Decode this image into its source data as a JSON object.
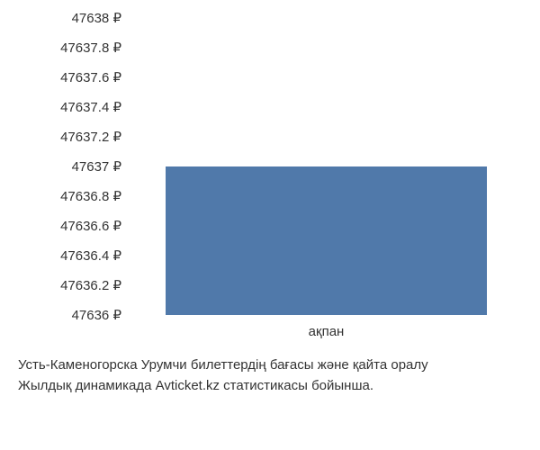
{
  "chart": {
    "type": "bar",
    "ylim": [
      47636,
      47638
    ],
    "ytick_step": 0.2,
    "y_ticks": [
      {
        "value": 47638,
        "label": "47638 ₽"
      },
      {
        "value": 47637.8,
        "label": "47637.8 ₽"
      },
      {
        "value": 47637.6,
        "label": "47637.6 ₽"
      },
      {
        "value": 47637.4,
        "label": "47637.4 ₽"
      },
      {
        "value": 47637.2,
        "label": "47637.2 ₽"
      },
      {
        "value": 47637,
        "label": "47637 ₽"
      },
      {
        "value": 47636.8,
        "label": "47636.8 ₽"
      },
      {
        "value": 47636.6,
        "label": "47636.6 ₽"
      },
      {
        "value": 47636.4,
        "label": "47636.4 ₽"
      },
      {
        "value": 47636.2,
        "label": "47636.2 ₽"
      },
      {
        "value": 47636,
        "label": "47636 ₽"
      }
    ],
    "categories": [
      "ақпан"
    ],
    "values": [
      47637
    ],
    "bar_color": "#5079aa",
    "bar_width": 0.82,
    "background_color": "#ffffff",
    "font_size": 15,
    "text_color": "#333333"
  },
  "caption": {
    "line1": "Усть-Каменогорска Урумчи билеттердің бағасы және қайта оралу",
    "line2": "Жылдық динамикада Avticket.kz статистикасы бойынша."
  }
}
